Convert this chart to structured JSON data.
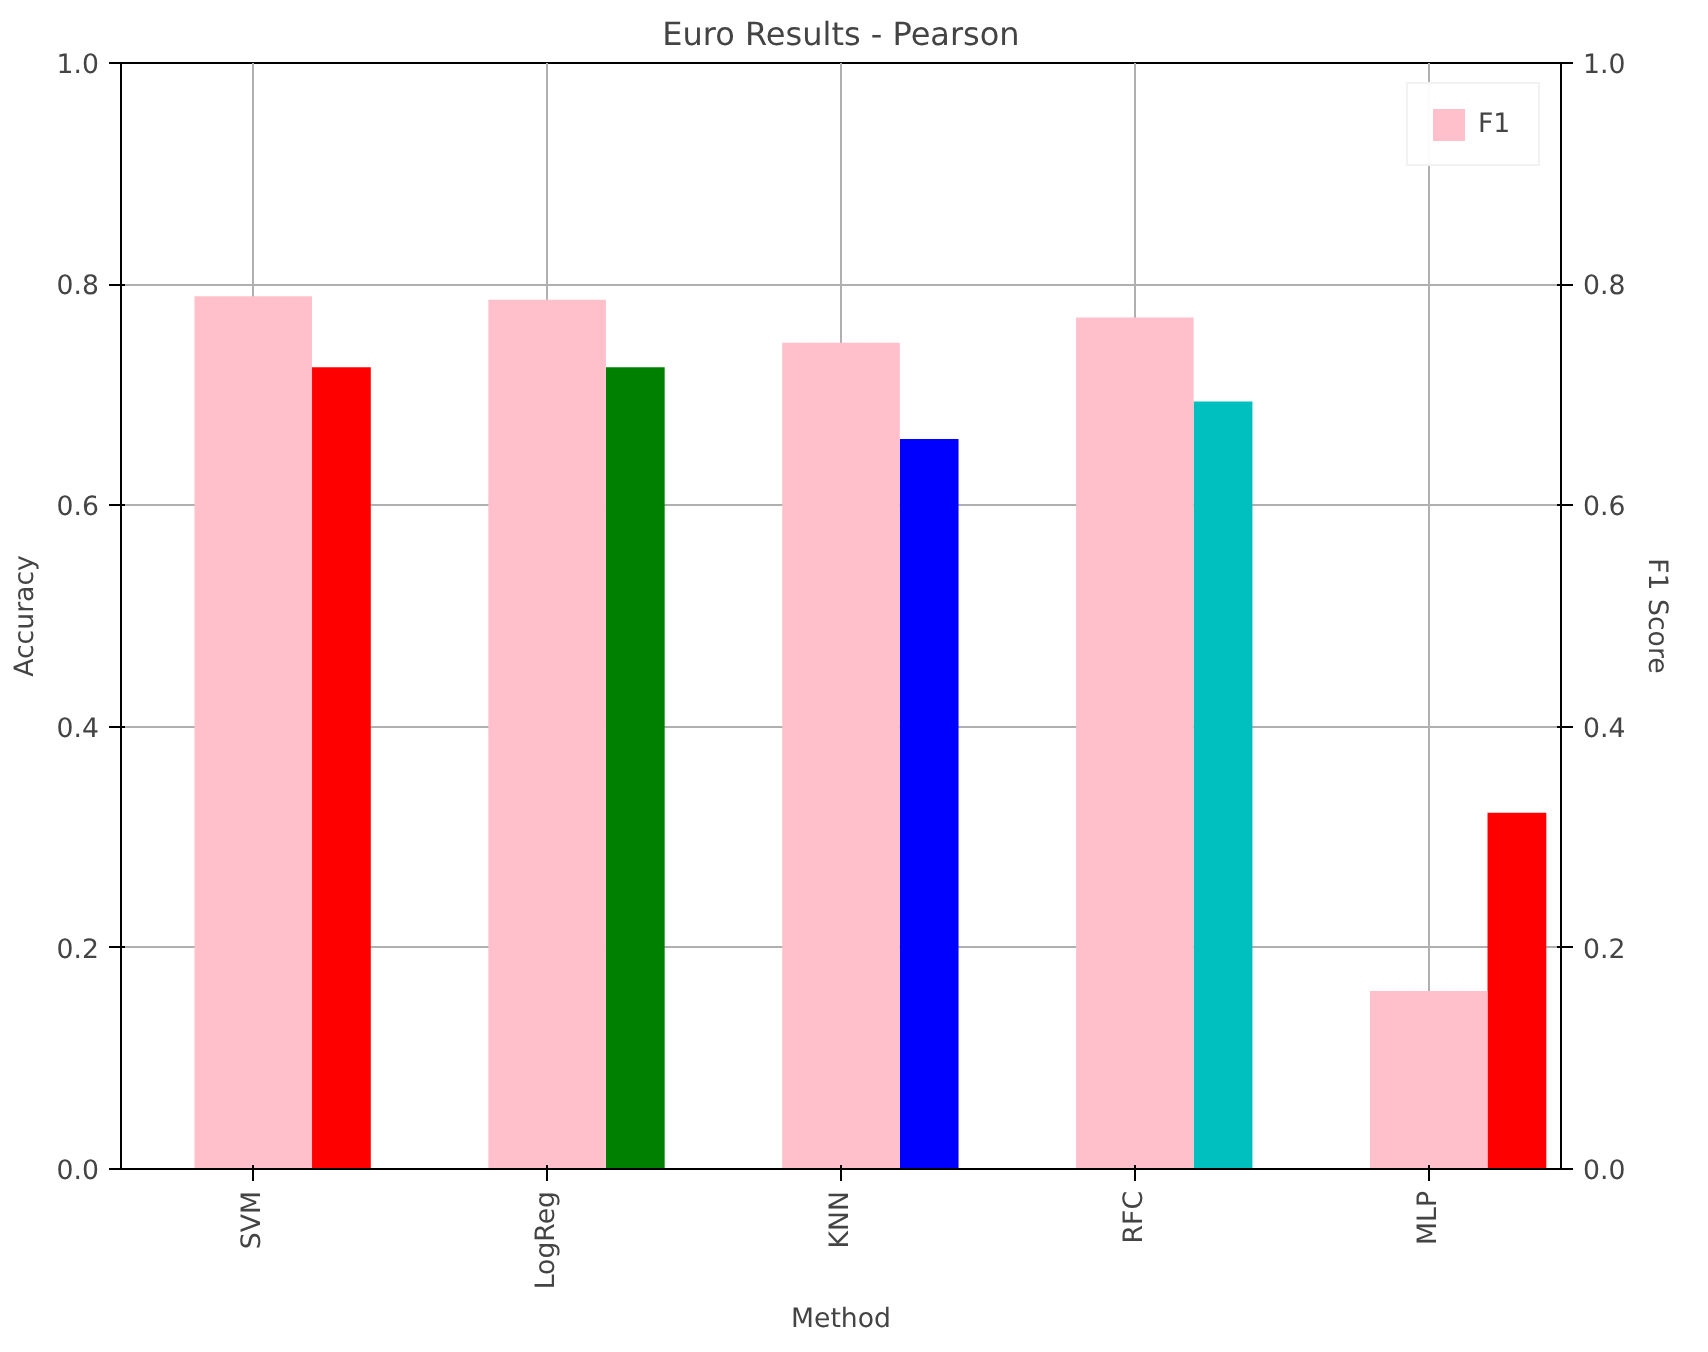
{
  "chart_data": {
    "type": "bar",
    "title": "Euro Results - Pearson",
    "xlabel": "Method",
    "ylabel": "Accuracy",
    "y2label": "F1 Score",
    "categories": [
      "SVM",
      "LogReg",
      "KNN",
      "RFC",
      "MLP"
    ],
    "series": [
      {
        "colors": [
          "#ff0000",
          "#008000",
          "#0000ff",
          "#00bfbf",
          "#ff0000"
        ],
        "values": [
          0.725,
          0.725,
          0.66,
          0.694,
          0.322
        ]
      },
      {
        "name": "F1",
        "color": "#ffc0cb",
        "axis": "y2",
        "values": [
          0.789,
          0.786,
          0.747,
          0.77,
          0.161
        ]
      }
    ],
    "ylim": [
      0,
      1
    ],
    "yticks": [
      {
        "value": 0,
        "label": "0.0"
      },
      0.2,
      0.4,
      0.6,
      0.8,
      {
        "value": 1,
        "label": "1.0"
      }
    ],
    "y2lim": [
      0,
      1
    ],
    "y2ticks": [
      {
        "value": 0,
        "label": "0.0"
      },
      0.2,
      0.4,
      0.6,
      0.8,
      {
        "value": 1,
        "label": "1.0"
      }
    ],
    "grid": true,
    "legend": "top right"
  }
}
